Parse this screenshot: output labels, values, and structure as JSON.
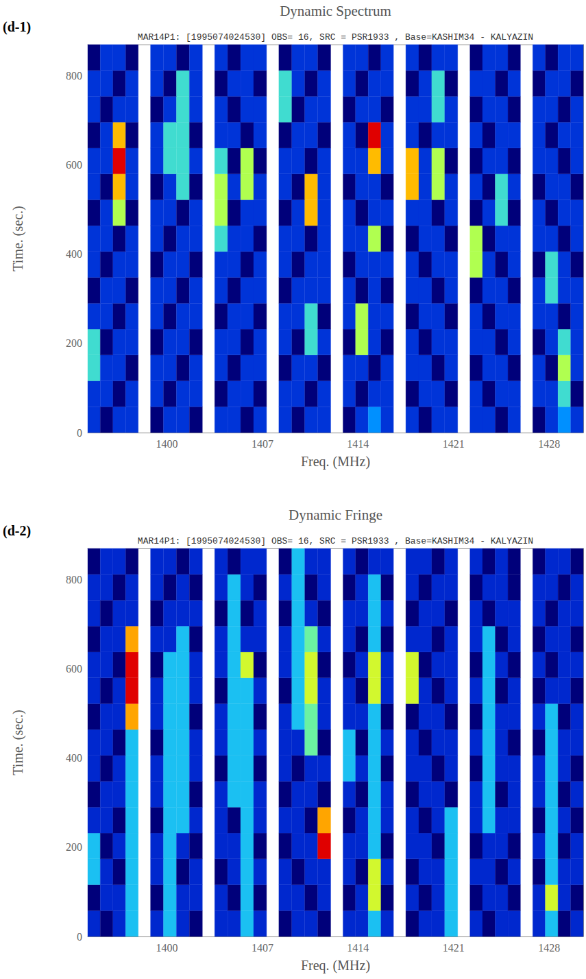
{
  "chart_data": [
    {
      "type": "heatmap",
      "title": "Dynamic Spectrum",
      "panel_label": "(d-1)",
      "subtitle": "MAR14P1: [1995074024530] OBS= 16, SRC = PSR1933 , Base=KASHIM34 - KALYAZIN",
      "x_label": "Freq. (MHz)",
      "y_label": "Time. (sec.)",
      "xlim": [
        1394.2,
        1430.5
      ],
      "xticks": [
        1400,
        1407,
        1414,
        1421,
        1428
      ],
      "ylim": [
        0,
        870
      ],
      "yticks": [
        0,
        200,
        400,
        600,
        800
      ],
      "grid": false,
      "x_bins": [
        [
          1394.2,
          1395.12,
          1396.05,
          1396.98,
          1397.9
        ],
        [
          1398.8,
          1399.75,
          1400.7,
          1401.65,
          1402.6
        ],
        [
          1403.5,
          1404.45,
          1405.4,
          1406.35,
          1407.3
        ],
        [
          1408.2,
          1409.15,
          1410.1,
          1411.05,
          1412.0
        ],
        [
          1412.9,
          1413.82,
          1414.75,
          1415.68,
          1416.6
        ],
        [
          1417.5,
          1418.45,
          1419.4,
          1420.35,
          1421.3
        ],
        [
          1422.2,
          1423.12,
          1424.05,
          1424.98,
          1425.9
        ],
        [
          1426.8,
          1427.72,
          1428.65,
          1429.58,
          1430.5
        ]
      ],
      "y_bins": [
        0,
        58,
        116,
        174,
        232,
        290,
        348,
        406,
        464,
        522,
        580,
        638,
        696,
        754,
        812,
        870
      ],
      "z": [
        [
          2,
          1,
          2,
          2,
          1,
          2,
          2,
          1,
          2,
          2,
          1,
          2,
          2,
          1,
          2,
          2,
          1,
          2,
          3,
          2,
          2,
          1,
          2,
          2,
          2,
          2,
          1,
          2,
          1,
          2,
          3,
          2
        ],
        [
          2,
          2,
          1,
          2,
          2,
          1,
          2,
          2,
          1,
          2,
          2,
          1,
          2,
          2,
          1,
          2,
          2,
          1,
          2,
          2,
          1,
          2,
          2,
          1,
          2,
          1,
          2,
          2,
          2,
          2,
          4,
          1
        ],
        [
          4,
          2,
          2,
          1,
          2,
          2,
          1,
          2,
          2,
          1,
          2,
          2,
          1,
          2,
          2,
          1,
          2,
          2,
          1,
          2,
          2,
          2,
          1,
          2,
          1,
          2,
          2,
          1,
          2,
          1,
          5,
          2
        ],
        [
          4,
          1,
          2,
          2,
          1,
          2,
          2,
          1,
          2,
          2,
          1,
          2,
          2,
          1,
          4,
          2,
          1,
          5,
          2,
          1,
          2,
          1,
          2,
          2,
          2,
          2,
          1,
          2,
          1,
          2,
          4,
          2
        ],
        [
          2,
          2,
          1,
          2,
          2,
          1,
          2,
          2,
          1,
          2,
          2,
          1,
          2,
          2,
          4,
          1,
          2,
          5,
          2,
          2,
          1,
          2,
          2,
          1,
          2,
          1,
          2,
          2,
          2,
          2,
          1,
          2
        ],
        [
          1,
          2,
          2,
          1,
          2,
          2,
          1,
          2,
          2,
          1,
          2,
          2,
          1,
          2,
          2,
          2,
          2,
          1,
          2,
          1,
          2,
          2,
          1,
          2,
          1,
          2,
          2,
          1,
          2,
          4,
          2,
          2
        ],
        [
          2,
          1,
          2,
          2,
          1,
          2,
          2,
          1,
          2,
          2,
          1,
          2,
          2,
          1,
          2,
          2,
          1,
          2,
          2,
          2,
          2,
          1,
          2,
          2,
          5,
          2,
          1,
          2,
          1,
          4,
          2,
          1
        ],
        [
          2,
          2,
          1,
          2,
          2,
          1,
          2,
          2,
          4,
          2,
          2,
          1,
          2,
          2,
          1,
          2,
          2,
          2,
          5,
          1,
          1,
          2,
          2,
          1,
          5,
          1,
          2,
          2,
          2,
          2,
          1,
          2
        ],
        [
          1,
          2,
          5,
          1,
          2,
          2,
          1,
          2,
          5,
          1,
          2,
          2,
          1,
          2,
          6,
          2,
          2,
          1,
          2,
          2,
          2,
          2,
          1,
          2,
          1,
          2,
          4,
          1,
          2,
          1,
          2,
          2
        ],
        [
          2,
          1,
          6,
          2,
          1,
          2,
          4,
          1,
          5,
          2,
          5,
          2,
          2,
          1,
          6,
          2,
          1,
          2,
          2,
          1,
          6,
          2,
          5,
          2,
          2,
          1,
          4,
          2,
          1,
          2,
          2,
          1
        ],
        [
          2,
          2,
          7,
          2,
          2,
          4,
          4,
          2,
          4,
          1,
          5,
          1,
          2,
          2,
          1,
          2,
          2,
          2,
          6,
          2,
          6,
          2,
          5,
          1,
          1,
          2,
          2,
          1,
          2,
          2,
          1,
          2
        ],
        [
          1,
          2,
          6,
          1,
          2,
          4,
          4,
          1,
          2,
          2,
          1,
          2,
          1,
          2,
          2,
          1,
          2,
          1,
          7,
          2,
          2,
          1,
          2,
          2,
          2,
          1,
          2,
          2,
          2,
          1,
          2,
          2
        ],
        [
          2,
          1,
          2,
          2,
          1,
          2,
          4,
          2,
          2,
          1,
          2,
          2,
          4,
          1,
          2,
          2,
          1,
          2,
          2,
          1,
          2,
          2,
          4,
          2,
          1,
          2,
          2,
          1,
          2,
          2,
          1,
          2
        ],
        [
          2,
          2,
          1,
          2,
          2,
          1,
          4,
          2,
          1,
          2,
          2,
          1,
          4,
          2,
          1,
          2,
          2,
          1,
          2,
          2,
          1,
          2,
          4,
          1,
          2,
          2,
          1,
          2,
          1,
          2,
          2,
          1
        ],
        [
          1,
          2,
          2,
          1,
          2,
          2,
          1,
          2,
          2,
          1,
          2,
          2,
          1,
          2,
          2,
          1,
          2,
          2,
          1,
          2,
          2,
          1,
          2,
          2,
          1,
          2,
          2,
          1,
          2,
          1,
          2,
          2
        ]
      ]
    },
    {
      "type": "heatmap",
      "title": "Dynamic Fringe",
      "panel_label": "(d-2)",
      "subtitle": "MAR14P1: [1995074024530] OBS= 16, SRC = PSR1933 , Base=KASHIM34 - KALYAZIN",
      "x_label": "Freq. (MHz)",
      "y_label": "Time. (sec.)",
      "xlim": [
        1394.2,
        1430.5
      ],
      "xticks": [
        1400,
        1407,
        1414,
        1421,
        1428
      ],
      "ylim": [
        0,
        870
      ],
      "yticks": [
        0,
        200,
        400,
        600,
        800
      ],
      "grid": false,
      "x_bins": [
        [
          1394.2,
          1395.12,
          1396.05,
          1396.98,
          1397.9
        ],
        [
          1398.8,
          1399.75,
          1400.7,
          1401.65,
          1402.6
        ],
        [
          1403.5,
          1404.45,
          1405.4,
          1406.35,
          1407.3
        ],
        [
          1408.2,
          1409.15,
          1410.1,
          1411.05,
          1412.0
        ],
        [
          1412.9,
          1413.82,
          1414.75,
          1415.68,
          1416.6
        ],
        [
          1417.5,
          1418.45,
          1419.4,
          1420.35,
          1421.3
        ],
        [
          1422.2,
          1423.12,
          1424.05,
          1424.98,
          1425.9
        ],
        [
          1426.8,
          1427.72,
          1428.65,
          1429.58,
          1430.5
        ]
      ],
      "y_bins": [
        0,
        58,
        116,
        174,
        232,
        290,
        348,
        406,
        464,
        522,
        580,
        638,
        696,
        754,
        812,
        870
      ],
      "z": [
        [
          2,
          1,
          2,
          4,
          2,
          4,
          2,
          1,
          2,
          2,
          4,
          2,
          1,
          2,
          2,
          1,
          2,
          2,
          4,
          2,
          1,
          2,
          2,
          4,
          2,
          1,
          2,
          2,
          2,
          4,
          1,
          2
        ],
        [
          1,
          2,
          2,
          4,
          1,
          4,
          2,
          2,
          2,
          1,
          4,
          1,
          2,
          2,
          1,
          2,
          1,
          2,
          6,
          1,
          2,
          1,
          2,
          4,
          1,
          2,
          2,
          1,
          2,
          6,
          2,
          1
        ],
        [
          4,
          2,
          1,
          4,
          2,
          4,
          1,
          2,
          1,
          2,
          4,
          2,
          2,
          1,
          2,
          2,
          2,
          1,
          6,
          2,
          1,
          2,
          2,
          4,
          2,
          2,
          1,
          2,
          1,
          4,
          2,
          2
        ],
        [
          4,
          1,
          2,
          4,
          2,
          4,
          2,
          1,
          2,
          2,
          4,
          1,
          1,
          2,
          2,
          8,
          2,
          2,
          4,
          1,
          2,
          2,
          1,
          4,
          1,
          2,
          2,
          1,
          2,
          4,
          1,
          2
        ],
        [
          2,
          2,
          1,
          4,
          1,
          4,
          4,
          2,
          2,
          1,
          4,
          2,
          2,
          2,
          1,
          7,
          1,
          2,
          4,
          2,
          2,
          1,
          2,
          4,
          2,
          4,
          2,
          2,
          1,
          4,
          2,
          1
        ],
        [
          1,
          2,
          2,
          4,
          2,
          4,
          4,
          1,
          2,
          4,
          4,
          2,
          1,
          2,
          2,
          1,
          2,
          1,
          4,
          2,
          1,
          2,
          2,
          1,
          2,
          4,
          1,
          2,
          2,
          4,
          1,
          2
        ],
        [
          2,
          1,
          2,
          4,
          2,
          4,
          4,
          2,
          1,
          4,
          4,
          1,
          2,
          1,
          2,
          2,
          4,
          2,
          4,
          1,
          2,
          2,
          1,
          2,
          1,
          4,
          2,
          2,
          2,
          4,
          2,
          1
        ],
        [
          2,
          2,
          1,
          4,
          1,
          4,
          4,
          2,
          2,
          4,
          4,
          2,
          2,
          2,
          5,
          1,
          4,
          1,
          4,
          2,
          2,
          1,
          2,
          2,
          2,
          4,
          2,
          1,
          1,
          4,
          2,
          2
        ],
        [
          1,
          2,
          2,
          7,
          2,
          4,
          4,
          1,
          2,
          4,
          4,
          1,
          2,
          4,
          5,
          2,
          2,
          2,
          4,
          1,
          1,
          2,
          2,
          1,
          1,
          4,
          2,
          2,
          2,
          4,
          1,
          2
        ],
        [
          2,
          1,
          2,
          8,
          2,
          4,
          4,
          2,
          1,
          4,
          4,
          2,
          1,
          4,
          6,
          2,
          2,
          1,
          6,
          2,
          6,
          2,
          1,
          2,
          2,
          4,
          1,
          2,
          1,
          2,
          2,
          1
        ],
        [
          2,
          2,
          1,
          8,
          1,
          4,
          4,
          2,
          2,
          4,
          6,
          1,
          2,
          4,
          6,
          1,
          1,
          2,
          6,
          2,
          6,
          1,
          2,
          2,
          1,
          4,
          2,
          1,
          2,
          1,
          2,
          2
        ],
        [
          1,
          2,
          2,
          7,
          2,
          2,
          4,
          1,
          2,
          4,
          2,
          2,
          2,
          4,
          5,
          2,
          2,
          1,
          4,
          1,
          2,
          2,
          1,
          2,
          2,
          4,
          1,
          2,
          1,
          2,
          2,
          1
        ],
        [
          2,
          1,
          2,
          2,
          1,
          2,
          2,
          2,
          1,
          4,
          1,
          2,
          1,
          4,
          2,
          1,
          2,
          2,
          4,
          2,
          1,
          2,
          2,
          1,
          2,
          1,
          2,
          2,
          2,
          1,
          2,
          2
        ],
        [
          2,
          2,
          1,
          2,
          2,
          1,
          2,
          1,
          2,
          4,
          2,
          1,
          2,
          4,
          1,
          2,
          1,
          2,
          4,
          1,
          2,
          1,
          2,
          2,
          1,
          2,
          2,
          1,
          2,
          2,
          1,
          2
        ],
        [
          1,
          2,
          2,
          1,
          2,
          2,
          1,
          2,
          2,
          1,
          2,
          2,
          1,
          4,
          2,
          2,
          2,
          1,
          2,
          2,
          2,
          2,
          1,
          2,
          2,
          1,
          2,
          1,
          1,
          2,
          2,
          1
        ]
      ]
    }
  ]
}
